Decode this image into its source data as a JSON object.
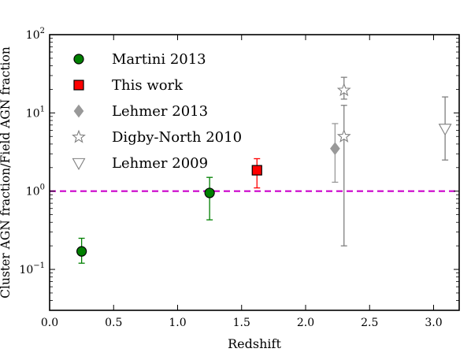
{
  "chart_data": {
    "type": "scatter",
    "title": "",
    "xlabel": "Redshift",
    "ylabel": "Cluster AGN fraction/Field AGN fraction",
    "xlim": [
      0.0,
      3.2
    ],
    "ylim": [
      0.03,
      100
    ],
    "yscale": "log",
    "grid": false,
    "legend_position": "top-left",
    "xticks": [
      0.0,
      0.5,
      1.0,
      1.5,
      2.0,
      2.5,
      3.0
    ],
    "xtick_labels": [
      "0.0",
      "0.5",
      "1.0",
      "1.5",
      "2.0",
      "2.5",
      "3.0"
    ],
    "yticks": [
      0.1,
      1,
      10,
      100
    ],
    "ytick_labels": [
      {
        "base": "10",
        "exp": "−1"
      },
      {
        "base": "10",
        "exp": "0"
      },
      {
        "base": "10",
        "exp": "1"
      },
      {
        "base": "10",
        "exp": "2"
      }
    ],
    "reference_line": {
      "y": 1.0,
      "color": "#cc00cc",
      "style": "dashed"
    },
    "series": [
      {
        "name": "Martini 2013",
        "marker": "circle",
        "color": "#008000",
        "filled": true,
        "points": [
          {
            "x": 0.25,
            "y": 0.17,
            "ylow": 0.12,
            "yhigh": 0.25
          },
          {
            "x": 1.25,
            "y": 0.95,
            "ylow": 0.43,
            "yhigh": 1.5
          }
        ]
      },
      {
        "name": "This work",
        "marker": "square",
        "color": "#ff0000",
        "filled": true,
        "points": [
          {
            "x": 1.62,
            "y": 1.85,
            "ylow": 1.1,
            "yhigh": 2.6
          }
        ]
      },
      {
        "name": "Lehmer 2013",
        "marker": "diamond",
        "color": "#999999",
        "filled": true,
        "points": [
          {
            "x": 2.23,
            "y": 3.5,
            "ylow": 1.3,
            "yhigh": 7.3
          }
        ]
      },
      {
        "name": "Digby-North 2010",
        "marker": "star",
        "color": "#808080",
        "filled": false,
        "points": [
          {
            "x": 2.3,
            "y": 19.5,
            "ylow": 15.0,
            "yhigh": 28.5
          },
          {
            "x": 2.3,
            "y": 5.0,
            "ylow": 0.2,
            "yhigh": 12.5
          }
        ]
      },
      {
        "name": "Lehmer 2009",
        "marker": "triangle-down",
        "color": "#808080",
        "filled": false,
        "points": [
          {
            "x": 3.09,
            "y": 6.3,
            "ylow": 2.5,
            "yhigh": 16.0
          }
        ]
      }
    ]
  }
}
